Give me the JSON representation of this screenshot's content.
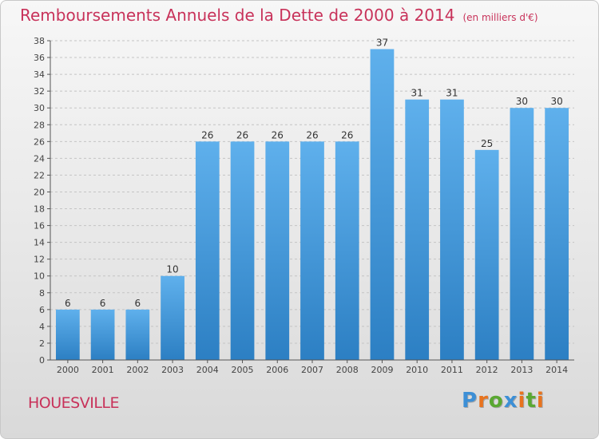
{
  "title": "Remboursements Annuels de la Dette de 2000 à 2014",
  "unit": "(en milliers d'€)",
  "place": "HOUESVILLE",
  "logo": {
    "text": "Proxiti",
    "letters": [
      {
        "ch": "P",
        "color": "#3c8fd6"
      },
      {
        "ch": "r",
        "color": "#e8731e"
      },
      {
        "ch": "o",
        "color": "#5aa832"
      },
      {
        "ch": "x",
        "color": "#3c8fd6"
      },
      {
        "ch": "i",
        "color": "#e8731e"
      },
      {
        "ch": "t",
        "color": "#5aa832"
      },
      {
        "ch": "i",
        "color": "#e8731e"
      }
    ]
  },
  "chart_data": {
    "type": "bar",
    "categories": [
      "2000",
      "2001",
      "2002",
      "2003",
      "2004",
      "2005",
      "2006",
      "2007",
      "2008",
      "2009",
      "2010",
      "2011",
      "2012",
      "2013",
      "2014"
    ],
    "values": [
      6,
      6,
      6,
      10,
      26,
      26,
      26,
      26,
      26,
      37,
      31,
      31,
      25,
      30,
      30
    ],
    "ylim": [
      0,
      38
    ],
    "yticks": [
      0,
      2,
      4,
      6,
      8,
      10,
      12,
      14,
      16,
      18,
      20,
      22,
      24,
      26,
      28,
      30,
      32,
      34,
      36,
      38
    ],
    "grid": true,
    "bar_color": "#4a9fe0"
  }
}
